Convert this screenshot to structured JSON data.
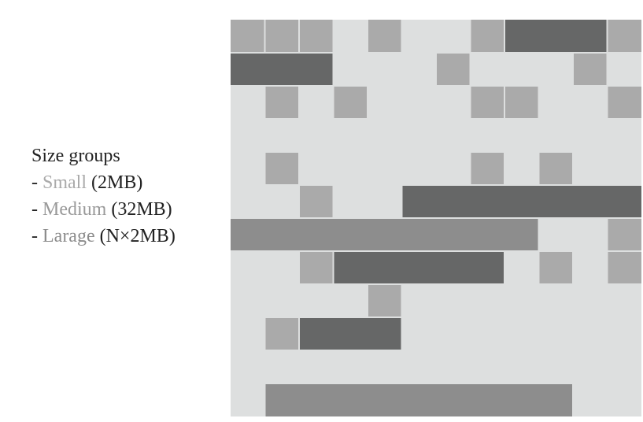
{
  "legend": {
    "title": "Size groups",
    "items": [
      {
        "label": "Small",
        "detail": "(2MB)",
        "color": "#aaaaaa"
      },
      {
        "label": "Medium",
        "detail": "(32MB)",
        "color": "#999999"
      },
      {
        "label": "Larage",
        "detail": "(N×2MB)",
        "color": "#8c8c8c"
      }
    ],
    "dash": "-"
  },
  "colors": {
    "background": "#dddfdf",
    "small": "#aaaaaa",
    "medium": "#666767",
    "large": "#8d8d8d"
  },
  "grid": {
    "columns": 12,
    "rows": 12,
    "blocks": [
      {
        "type": "small",
        "row": 0,
        "col": 0,
        "span": 1
      },
      {
        "type": "small",
        "row": 0,
        "col": 1,
        "span": 1
      },
      {
        "type": "small",
        "row": 0,
        "col": 2,
        "span": 1
      },
      {
        "type": "small",
        "row": 0,
        "col": 4,
        "span": 1
      },
      {
        "type": "small",
        "row": 0,
        "col": 7,
        "span": 1
      },
      {
        "type": "medium",
        "row": 0,
        "col": 8,
        "span": 3
      },
      {
        "type": "small",
        "row": 0,
        "col": 11,
        "span": 1
      },
      {
        "type": "medium",
        "row": 1,
        "col": 0,
        "span": 3
      },
      {
        "type": "small",
        "row": 1,
        "col": 6,
        "span": 1
      },
      {
        "type": "small",
        "row": 1,
        "col": 10,
        "span": 1
      },
      {
        "type": "small",
        "row": 2,
        "col": 1,
        "span": 1
      },
      {
        "type": "small",
        "row": 2,
        "col": 3,
        "span": 1
      },
      {
        "type": "small",
        "row": 2,
        "col": 7,
        "span": 1
      },
      {
        "type": "small",
        "row": 2,
        "col": 8,
        "span": 1
      },
      {
        "type": "small",
        "row": 2,
        "col": 11,
        "span": 1
      },
      {
        "type": "small",
        "row": 4,
        "col": 1,
        "span": 1
      },
      {
        "type": "small",
        "row": 4,
        "col": 7,
        "span": 1
      },
      {
        "type": "small",
        "row": 4,
        "col": 9,
        "span": 1
      },
      {
        "type": "small",
        "row": 5,
        "col": 2,
        "span": 1
      },
      {
        "type": "medium",
        "row": 5,
        "col": 5,
        "span": 7
      },
      {
        "type": "large",
        "row": 6,
        "col": 0,
        "span": 9
      },
      {
        "type": "small",
        "row": 6,
        "col": 11,
        "span": 1
      },
      {
        "type": "small",
        "row": 7,
        "col": 2,
        "span": 1
      },
      {
        "type": "medium",
        "row": 7,
        "col": 3,
        "span": 5
      },
      {
        "type": "small",
        "row": 7,
        "col": 9,
        "span": 1
      },
      {
        "type": "small",
        "row": 7,
        "col": 11,
        "span": 1
      },
      {
        "type": "small",
        "row": 8,
        "col": 4,
        "span": 1
      },
      {
        "type": "small",
        "row": 9,
        "col": 1,
        "span": 1
      },
      {
        "type": "medium",
        "row": 9,
        "col": 2,
        "span": 3
      },
      {
        "type": "large",
        "row": 11,
        "col": 1,
        "span": 9
      }
    ]
  }
}
